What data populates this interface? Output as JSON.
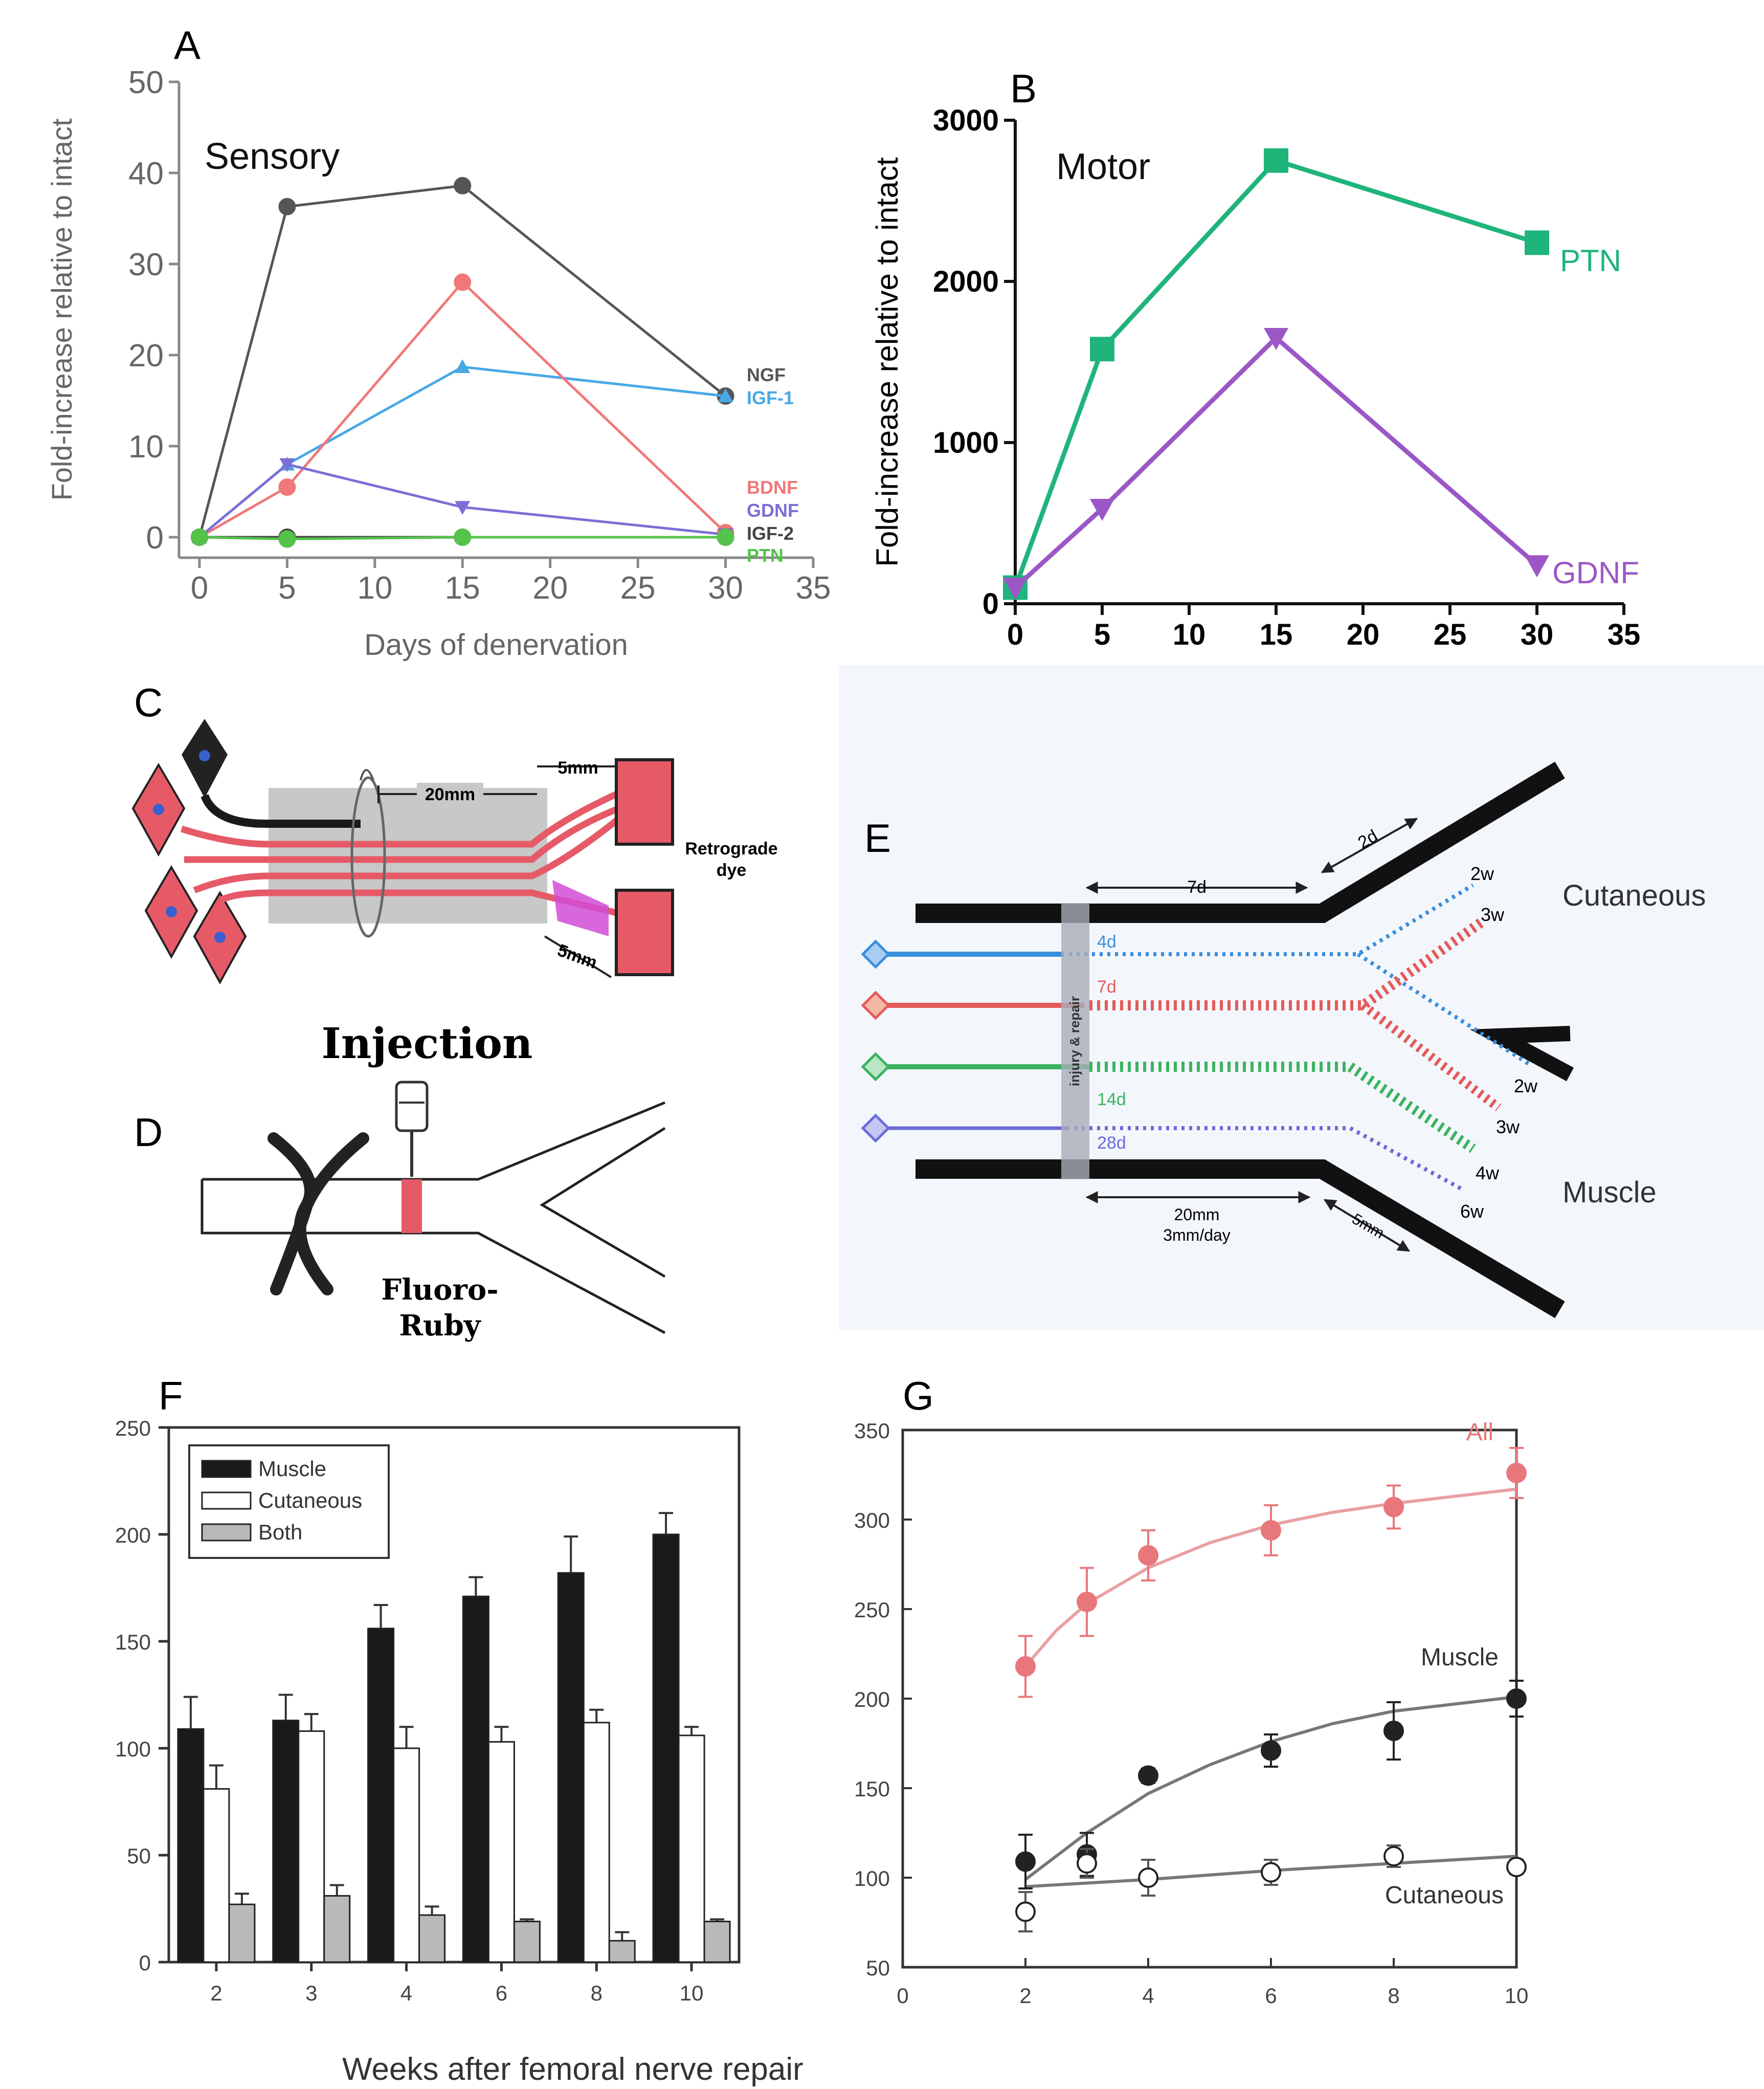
{
  "chart_data": [
    {
      "panel": "A",
      "type": "line",
      "title": "Sensory",
      "xlabel": "Days of denervation",
      "ylabel": "Fold-increase relative to intact",
      "xlim": [
        0,
        35
      ],
      "ylim": [
        0,
        50
      ],
      "xticks": [
        0,
        5,
        10,
        15,
        20,
        25,
        30,
        35
      ],
      "yticks": [
        0,
        10,
        20,
        30,
        40,
        50
      ],
      "series": [
        {
          "name": "NGF",
          "color": "#555555",
          "marker": "circle",
          "x": [
            0,
            5,
            15,
            30
          ],
          "values": [
            0,
            36.3,
            38.6,
            15.5
          ]
        },
        {
          "name": "IGF-1",
          "color": "#49a8e6",
          "marker": "triangle",
          "x": [
            0,
            5,
            15,
            30
          ],
          "values": [
            0,
            8.0,
            18.7,
            15.5
          ]
        },
        {
          "name": "BDNF",
          "color": "#f07878",
          "marker": "circle",
          "x": [
            0,
            5,
            15,
            30
          ],
          "values": [
            0,
            5.5,
            28.0,
            0.5
          ]
        },
        {
          "name": "GDNF",
          "color": "#7b6fd6",
          "marker": "invtri",
          "x": [
            0,
            5,
            15,
            30
          ],
          "values": [
            0,
            8.0,
            3.3,
            0.3
          ]
        },
        {
          "name": "IGF-2",
          "color": "#444444",
          "marker": "circle",
          "x": [
            0,
            5,
            15,
            30
          ],
          "values": [
            0,
            0,
            0,
            0
          ]
        },
        {
          "name": "PTN",
          "color": "#55c24a",
          "marker": "circle",
          "x": [
            0,
            5,
            15,
            30
          ],
          "values": [
            0,
            -0.2,
            0,
            0
          ]
        }
      ]
    },
    {
      "panel": "B",
      "type": "line",
      "title": "Motor",
      "xlabel": "Days of denervation",
      "ylabel": "Fold-increase relative to intact",
      "xlim": [
        0,
        35
      ],
      "ylim": [
        0,
        3000
      ],
      "xticks": [
        0,
        5,
        10,
        15,
        20,
        25,
        30,
        35
      ],
      "yticks": [
        0,
        1000,
        2000,
        3000
      ],
      "series": [
        {
          "name": "PTN",
          "color": "#1fb47a",
          "marker": "square",
          "x": [
            0,
            5,
            15,
            30
          ],
          "values": [
            100,
            1580,
            2750,
            2240
          ]
        },
        {
          "name": "GDNF",
          "color": "#9c57c6",
          "marker": "invtri",
          "x": [
            0,
            5,
            15,
            30
          ],
          "values": [
            100,
            590,
            1650,
            240
          ]
        }
      ]
    },
    {
      "panel": "F",
      "type": "bar",
      "xlabel": "Weeks after femoral nerve repair",
      "ylabel": "",
      "categories": [
        "2",
        "3",
        "4",
        "6",
        "8",
        "10"
      ],
      "ylim": [
        0,
        250
      ],
      "yticks": [
        0,
        50,
        100,
        150,
        200,
        250
      ],
      "series": [
        {
          "name": "Muscle",
          "color": "#1a1a1a",
          "values": [
            109,
            113,
            156,
            171,
            182,
            200
          ],
          "errors": [
            15,
            12,
            11,
            9,
            17,
            10
          ]
        },
        {
          "name": "Cutaneous",
          "color": "#ffffff",
          "values": [
            81,
            108,
            100,
            103,
            112,
            106
          ],
          "errors": [
            11,
            8,
            10,
            7,
            6,
            4
          ]
        },
        {
          "name": "Both",
          "color": "#b9b9b9",
          "values": [
            27,
            31,
            22,
            19,
            10,
            19
          ],
          "errors": [
            5,
            5,
            4,
            1,
            4,
            1
          ]
        }
      ]
    },
    {
      "panel": "G",
      "type": "scatter",
      "xlim": [
        0,
        10
      ],
      "ylim": [
        50,
        350
      ],
      "xticks": [
        0,
        2,
        4,
        6,
        8,
        10
      ],
      "yticks": [
        50,
        100,
        150,
        200,
        250,
        300,
        350
      ],
      "series": [
        {
          "name": "All",
          "color": "#e8777b",
          "x": [
            2,
            3,
            4,
            6,
            8,
            10
          ],
          "values": [
            218,
            254,
            280,
            294,
            307,
            326
          ],
          "errors": [
            17,
            19,
            14,
            14,
            12,
            14
          ]
        },
        {
          "name": "Muscle",
          "color": "#222222",
          "x": [
            2,
            3,
            4,
            6,
            8,
            10
          ],
          "values": [
            109,
            113,
            157,
            171,
            182,
            200
          ],
          "errors": [
            15,
            12,
            4,
            9,
            16,
            10
          ]
        },
        {
          "name": "Cutaneous",
          "color": "#ffffff",
          "x": [
            2,
            3,
            4,
            6,
            8,
            10
          ],
          "values": [
            81,
            108,
            100,
            103,
            112,
            106
          ],
          "errors": [
            11,
            8,
            10,
            7,
            6,
            4
          ]
        }
      ],
      "fits": [
        {
          "name": "All",
          "color": "#e8a0a2",
          "x": [
            2,
            2.5,
            3,
            4,
            5,
            6,
            7,
            8,
            9,
            10
          ],
          "values": [
            218,
            238,
            253,
            273,
            287,
            297,
            304,
            309,
            313,
            317
          ]
        },
        {
          "name": "Muscle",
          "color": "#777777",
          "x": [
            2,
            2.5,
            3,
            4,
            5,
            6,
            7,
            8,
            9,
            10
          ],
          "values": [
            99,
            112,
            125,
            147,
            163,
            176,
            186,
            193,
            197,
            201
          ]
        },
        {
          "name": "Cutaneous",
          "color": "#777777",
          "x": [
            2,
            4,
            6,
            8,
            10
          ],
          "values": [
            95,
            99,
            104,
            108,
            112
          ]
        }
      ]
    }
  ],
  "labels": {
    "panelA": "A",
    "panelB": "B",
    "panelC": "C",
    "panelD": "D",
    "panelE": "E",
    "panelF": "F",
    "panelG": "G",
    "injection": "Injection",
    "fluoro1": "Fluoro-",
    "fluoro2": "Ruby",
    "c_20mm": "20mm",
    "c_5mm_top": "5mm",
    "c_5mm_bot": "5mm",
    "retro1": "Retrograde",
    "retro2": "dye",
    "e_7d": "7d",
    "e_2d": "2d",
    "e_20mm": "20mm",
    "e_rate": "3mm/day",
    "e_5mm": "5mm",
    "e_injury": "injury & repair",
    "e_4d": "4d",
    "e_7d_red": "7d",
    "e_14d": "14d",
    "e_28d": "28d",
    "e_2w_top": "2w",
    "e_3w_top": "3w",
    "e_2w_bot": "2w",
    "e_3w_bot": "3w",
    "e_4w": "4w",
    "e_6w": "6w",
    "e_cutaneous": "Cutaneous",
    "e_muscle": "Muscle"
  }
}
